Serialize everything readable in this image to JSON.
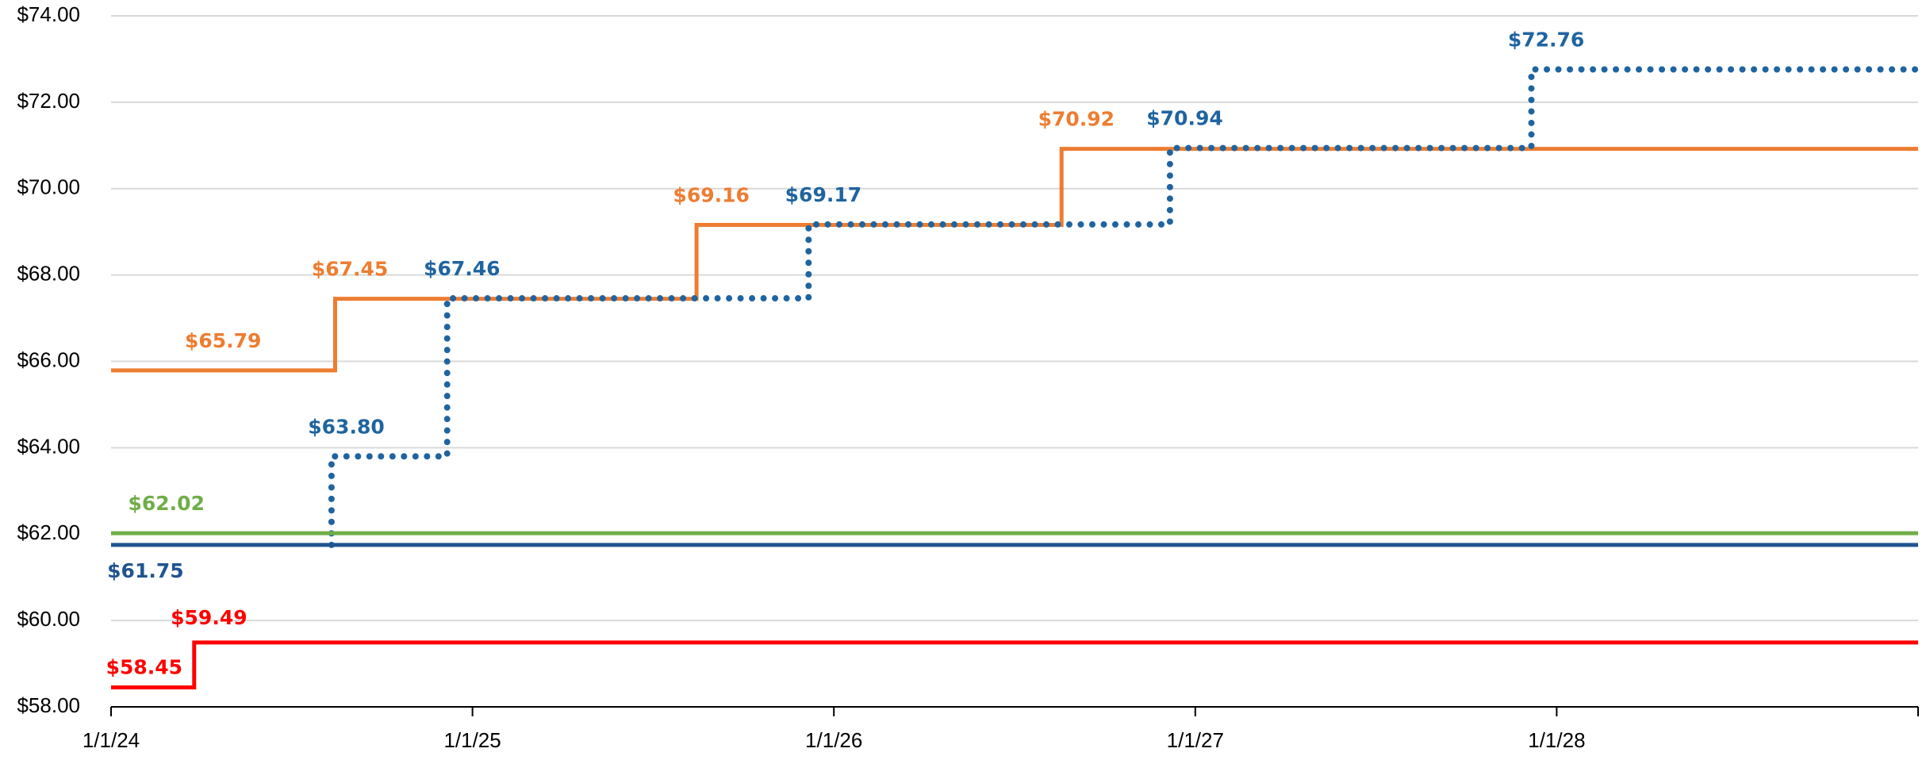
{
  "chart_data": {
    "type": "step",
    "xlim": [
      2024,
      2029
    ],
    "xticks": [
      {
        "value": 2024,
        "label": "1/1/24"
      },
      {
        "value": 2025,
        "label": "1/1/25"
      },
      {
        "value": 2026,
        "label": "1/1/26"
      },
      {
        "value": 2027,
        "label": "1/1/27"
      },
      {
        "value": 2028,
        "label": "1/1/28"
      }
    ],
    "ylim": [
      58,
      74
    ],
    "yticks": [
      {
        "value": 58,
        "label": "$58.00"
      },
      {
        "value": 60,
        "label": "$60.00"
      },
      {
        "value": 62,
        "label": "$62.00"
      },
      {
        "value": 64,
        "label": "$64.00"
      },
      {
        "value": 66,
        "label": "$66.00"
      },
      {
        "value": 68,
        "label": "$68.00"
      },
      {
        "value": 70,
        "label": "$70.00"
      },
      {
        "value": 72,
        "label": "$72.00"
      },
      {
        "value": 74,
        "label": "$74.00"
      }
    ],
    "grid": true,
    "series": [
      {
        "color": "#ED7D31",
        "style": "solid",
        "x": [
          2024,
          2024.62,
          2025.62,
          2026.63
        ],
        "values": [
          65.79,
          67.45,
          69.16,
          70.92
        ],
        "value_labels": [
          "$65.79",
          "$67.45",
          "$69.16",
          "$70.92"
        ]
      },
      {
        "color": "#1F64A0",
        "style": "dotted",
        "x": [
          2024.61,
          2024.61,
          2024.93,
          2025.93,
          2026.93,
          2027.93
        ],
        "values": [
          61.75,
          63.8,
          67.46,
          69.17,
          70.94,
          72.76
        ],
        "value_labels": [
          null,
          "$63.80",
          "$67.46",
          "$69.17",
          "$70.94",
          "$72.76"
        ]
      },
      {
        "color": "#70AD47",
        "style": "solid",
        "x": [
          2024
        ],
        "values": [
          62.02
        ],
        "value_labels": [
          "$62.02"
        ]
      },
      {
        "color": "#1F5490",
        "style": "solid",
        "x": [
          2024
        ],
        "values": [
          61.75
        ],
        "value_labels": [
          "$61.75"
        ]
      },
      {
        "color": "#FF0000",
        "style": "solid",
        "x": [
          2024,
          2024.23
        ],
        "values": [
          58.45,
          59.49
        ],
        "value_labels": [
          "$58.45",
          "$59.49"
        ]
      }
    ]
  }
}
